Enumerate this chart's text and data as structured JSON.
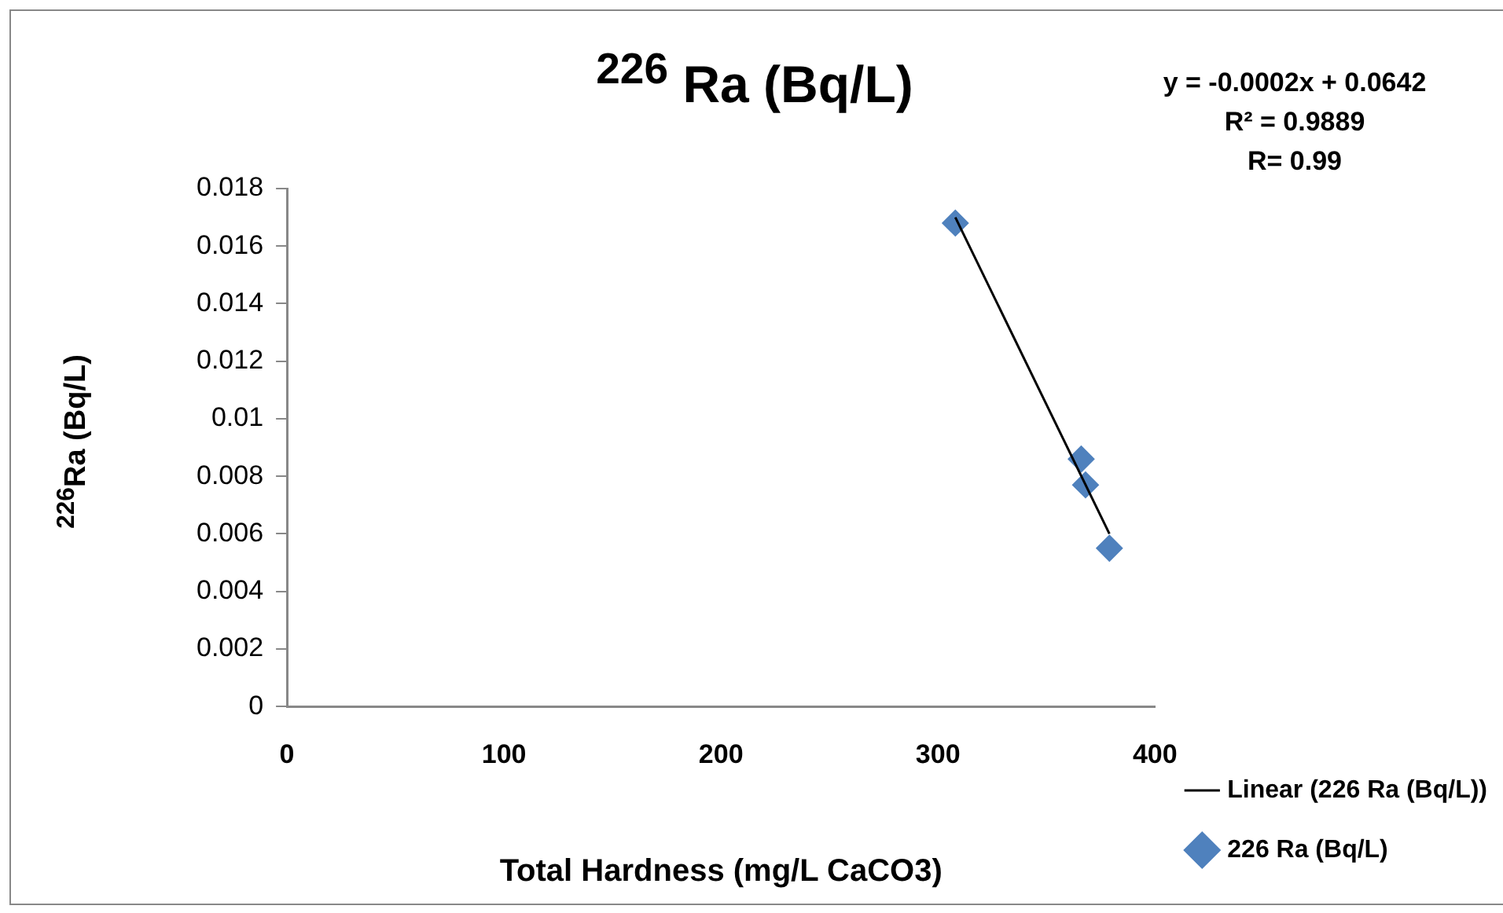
{
  "chart_data": {
    "type": "scatter",
    "title": "$^{226}$ Ra (Bq/L)",
    "xlabel": "Total Hardness (mg/L CaCO3)",
    "ylabel": "$^{226}$Ra (Bq/L)",
    "annotations": [
      "y = -0.0002x + 0.0642",
      "R² = 0.9889",
      "R= 0.99"
    ],
    "series": [
      {
        "name": "226 Ra (Bq/L)",
        "color": "#4f81bd",
        "marker": "diamond",
        "x": [
          308,
          366,
          368,
          379
        ],
        "values": [
          0.0168,
          0.0086,
          0.0077,
          0.0055
        ]
      },
      {
        "name": "Linear (226 Ra (Bq/L))",
        "type": "line",
        "color": "#000000",
        "marker": "none",
        "line_style": "solid",
        "x": [
          308,
          379
        ],
        "values": [
          0.017,
          0.006
        ]
      }
    ],
    "xlim": [
      0,
      400
    ],
    "xticks": [
      0,
      100,
      200,
      300,
      400
    ],
    "ylim": [
      0,
      0.018
    ],
    "yticks": [
      0,
      0.002,
      0.004,
      0.006,
      0.008,
      0.01,
      0.012,
      0.014,
      0.016,
      0.018
    ],
    "grid": false,
    "legend": "bottom right"
  }
}
